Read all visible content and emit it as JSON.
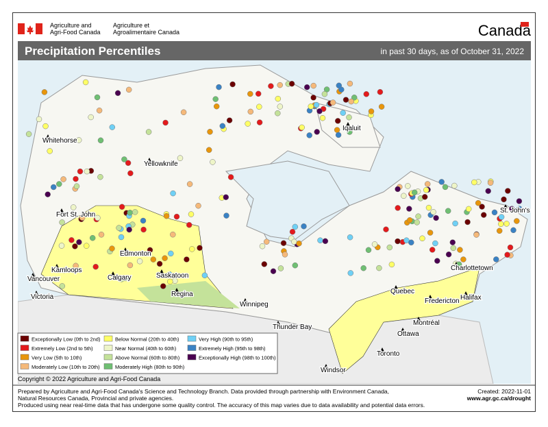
{
  "header": {
    "dept_en": [
      "Agriculture and",
      "Agri-Food Canada"
    ],
    "dept_fr": [
      "Agriculture et",
      "Agroalimentaire Canada"
    ],
    "wordmark": "Canada"
  },
  "title": "Precipitation Percentiles",
  "subtitle": "in past 30 days, as of October 31, 2022",
  "cities": [
    "Whitehorse",
    "Yellowknife",
    "Iqaluit",
    "Fort St. John",
    "Edmonton",
    "Kamloops",
    "Calgary",
    "Saskatoon",
    "Vancouver",
    "Victoria",
    "Regina",
    "Winnipeg",
    "Thunder Bay",
    "Quebec",
    "Charlottetown",
    "St. John's",
    "Fredericton",
    "Halifax",
    "Montréal",
    "Ottawa",
    "Toronto",
    "Windsor"
  ],
  "legend": [
    {
      "label": "Exceptionally Low (0th to 2nd)",
      "color": "#6b0000"
    },
    {
      "label": "Extremely Low (2nd to 5th)",
      "color": "#e31a1c"
    },
    {
      "label": "Very Low (5th to 10th)",
      "color": "#e8960c"
    },
    {
      "label": "Moderately Low (10th to 20th)",
      "color": "#f5b97a"
    },
    {
      "label": "Below Normal (20th to 40th)",
      "color": "#ffff66"
    },
    {
      "label": "Near Normal (40th to 60th)",
      "color": "#eef5c8"
    },
    {
      "label": "Above Normal (60th to 80th)",
      "color": "#c4e29a"
    },
    {
      "label": "Moderately High (80th to 90th)",
      "color": "#6fbf73"
    },
    {
      "label": "Very High (90th to 95th)",
      "color": "#6fd0f5"
    },
    {
      "label": "Extremely High (95th to 98th)",
      "color": "#3a82c4"
    },
    {
      "label": "Exceptionally High (98th to 100th)",
      "color": "#4a0050"
    }
  ],
  "copyright": "Copyright © 2022 Agriculture and Agri-Food Canada",
  "footer": {
    "lines": [
      "Prepared by Agriculture and Agri-Food Canada's Science and Technology Branch. Data provided through partnership with Environment Canada,",
      "Natural Resources Canada, Provincial and private agencies.",
      "Produced using near real-time data that has undergone some quality control. The accuracy of this map varies due to data availability and potential data errors."
    ],
    "created": "Created: 2022-11-01",
    "url": "www.agr.gc.ca/drought"
  }
}
